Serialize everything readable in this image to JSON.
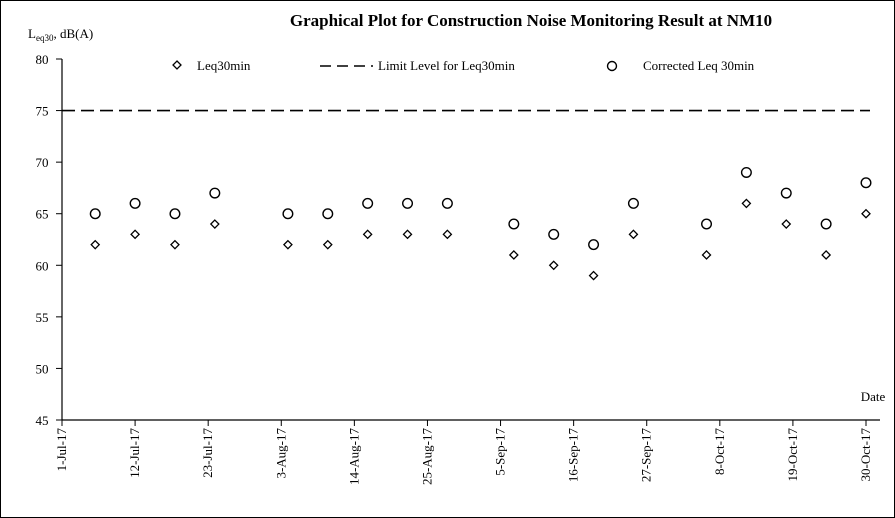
{
  "chart_data": {
    "type": "scatter",
    "title": "Graphical Plot for Construction Noise Monitoring Result at NM10",
    "ylabel_main": "L",
    "ylabel_sub": "eq30",
    "ylabel_rest": ", dB(A)",
    "xlabel": "Date",
    "ylim": [
      45,
      80
    ],
    "y_ticks": [
      45,
      50,
      55,
      60,
      65,
      70,
      75,
      80
    ],
    "x_tick_labels": [
      "1-Jul-17",
      "12-Jul-17",
      "23-Jul-17",
      "3-Aug-17",
      "14-Aug-17",
      "25-Aug-17",
      "5-Sep-17",
      "16-Sep-17",
      "27-Sep-17",
      "8-Oct-17",
      "19-Oct-17",
      "30-Oct-17"
    ],
    "x_day_range": [
      0,
      121
    ],
    "series": [
      {
        "name": "Leq30min",
        "marker": "diamond",
        "x_days": [
          5,
          11,
          17,
          23,
          34,
          40,
          46,
          52,
          58,
          68,
          74,
          80,
          86,
          97,
          103,
          109,
          115,
          121
        ],
        "values": [
          62,
          63,
          62,
          64,
          62,
          62,
          63,
          63,
          63,
          61,
          60,
          59,
          63,
          61,
          66,
          64,
          61,
          65
        ]
      },
      {
        "name": "Limit Level for Leq30min",
        "marker": "dashed-line",
        "value": 75
      },
      {
        "name": "Corrected Leq 30min",
        "marker": "circle",
        "x_days": [
          5,
          11,
          17,
          23,
          34,
          40,
          46,
          52,
          58,
          68,
          74,
          80,
          86,
          97,
          103,
          109,
          115,
          121
        ],
        "values": [
          65,
          66,
          65,
          67,
          65,
          65,
          66,
          66,
          66,
          64,
          63,
          62,
          66,
          64,
          69,
          67,
          64,
          68
        ]
      }
    ],
    "grid": false,
    "legend_position": "top"
  }
}
